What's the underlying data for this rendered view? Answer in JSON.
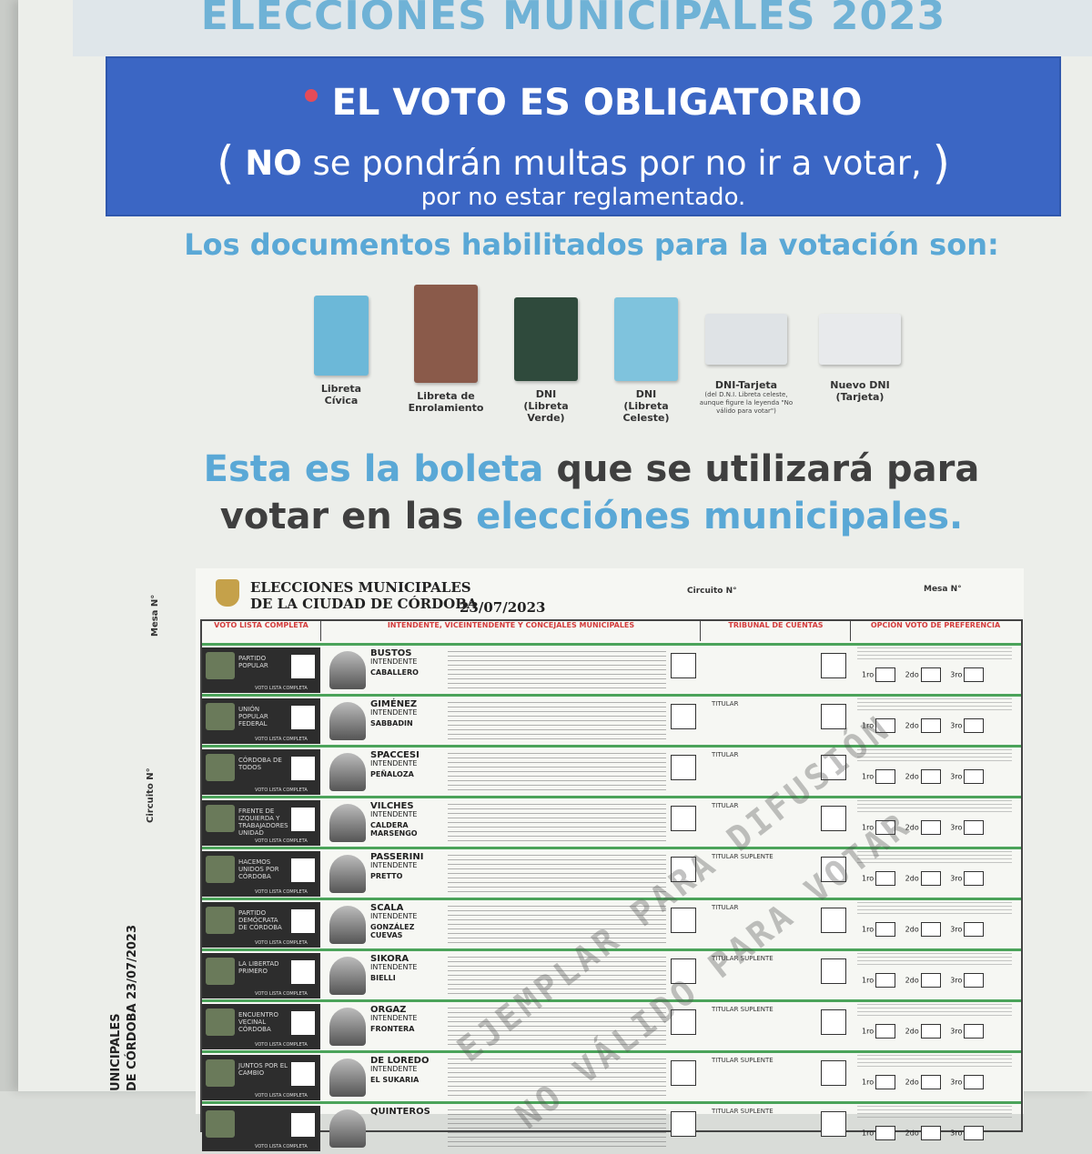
{
  "header": {
    "title": "ELECCIONES MUNICIPALES 2023"
  },
  "banner": {
    "line1": "EL VOTO ES OBLIGATORIO",
    "line2_open": "(",
    "line2_bold": "NO",
    "line2_rest": " se pondrán multas por no ir a votar,",
    "line2_close": ")",
    "line3": "por no estar reglamentado."
  },
  "documents": {
    "heading": "Los documentos habilitados para la votación son:",
    "items": [
      {
        "label_1": "Libreta",
        "label_2": "Cívica",
        "note": "",
        "color": "#6cb8d8"
      },
      {
        "label_1": "Libreta de",
        "label_2": "Enrolamiento",
        "note": "",
        "color": "#8a5a4a"
      },
      {
        "label_1": "DNI",
        "label_2": "(Libreta Verde)",
        "note": "",
        "color": "#2f4a3c"
      },
      {
        "label_1": "DNI",
        "label_2": "(Libreta Celeste)",
        "note": "",
        "color": "#7fc3dd"
      },
      {
        "label_1": "DNI-Tarjeta",
        "label_2": "",
        "note": "(del D.N.I. Libreta celeste, aunque figure la leyenda \"No válido para votar\")",
        "color": "#dfe3e6"
      },
      {
        "label_1": "Nuevo DNI",
        "label_2": "(Tarjeta)",
        "note": "",
        "color": "#e8eaec"
      }
    ]
  },
  "boleta": {
    "p1": "Esta es la boleta",
    "p2": " que se utilizará para",
    "p3": "votar en las ",
    "p4": "elecciónes municipales."
  },
  "ballot": {
    "title_1": "ELECCIONES MUNICIPALES",
    "title_2": "DE LA CIUDAD DE CÓRDOBA",
    "date": "23/07/2023",
    "circuito": "Circuito N°",
    "mesa": "Mesa N°",
    "side_mesa": "Mesa N°",
    "side_circuito": "Circuito N°",
    "side_bottom_1": "UNICIPALES",
    "side_bottom_2": "DE CÓRDOBA 23/07/2023",
    "col_heads": [
      "VOTO LISTA COMPLETA",
      "INTENDENTE, VICEINTENDENTE Y CONCEJALES MUNICIPALES",
      "TRIBUNAL DE CUENTAS",
      "OPCIÓN VOTO DE PREFERENCIA"
    ],
    "watermark_1": "EJEMPLAR PARA DIFUSIÓN",
    "watermark_2": "NO VÁLIDO PARA VOTAR",
    "rows": [
      {
        "party": "PARTIDO POPULAR",
        "cand": "BUSTOS",
        "role": "INTENDENTE",
        "vice": "CABALLERO",
        "tribunal": ""
      },
      {
        "party": "UNIÓN POPULAR FEDERAL",
        "cand": "GIMÉNEZ",
        "role": "INTENDENTE",
        "vice": "SABBADIN",
        "tribunal": "TITULAR"
      },
      {
        "party": "CÓRDOBA DE TODOS",
        "cand": "SPACCESI",
        "role": "INTENDENTE",
        "vice": "PEÑALOZA",
        "tribunal": "TITULAR"
      },
      {
        "party": "FRENTE DE IZQUIERDA Y TRABAJADORES UNIDAD",
        "cand": "VILCHES",
        "role": "INTENDENTE",
        "vice": "CALDERA MARSENGO",
        "tribunal": "TITULAR"
      },
      {
        "party": "HACEMOS UNIDOS POR CÓRDOBA",
        "cand": "PASSERINI",
        "role": "INTENDENTE",
        "vice": "PRETTO",
        "tribunal": "TITULAR   SUPLENTE"
      },
      {
        "party": "PARTIDO DEMÓCRATA DE CÓRDOBA",
        "cand": "SCALA",
        "role": "INTENDENTE",
        "vice": "GONZÁLEZ CUEVAS",
        "tribunal": "TITULAR"
      },
      {
        "party": "LA LIBERTAD PRIMERO",
        "cand": "SIKORA",
        "role": "INTENDENTE",
        "vice": "BIELLI",
        "tribunal": "TITULAR   SUPLENTE"
      },
      {
        "party": "ENCUENTRO VECINAL CÓRDOBA",
        "cand": "ORGAZ",
        "role": "INTENDENTE",
        "vice": "FRONTERA",
        "tribunal": "TITULAR   SUPLENTE"
      },
      {
        "party": "JUNTOS POR EL CAMBIO",
        "cand": "DE LOREDO",
        "role": "INTENDENTE",
        "vice": "EL SUKARIA",
        "tribunal": "TITULAR   SUPLENTE"
      },
      {
        "party": "",
        "cand": "QUINTEROS",
        "role": "",
        "vice": "",
        "tribunal": "TITULAR   SUPLENTE"
      }
    ],
    "pref_labels": [
      "1ro",
      "2do",
      "3ro"
    ],
    "voto_lista_completa": "VOTO LISTA COMPLETA"
  },
  "colors": {
    "accent_blue": "#5aa8d6",
    "banner_blue": "#3b66c4",
    "header_red": "#d23c3c",
    "row_green": "#4ba35a"
  }
}
